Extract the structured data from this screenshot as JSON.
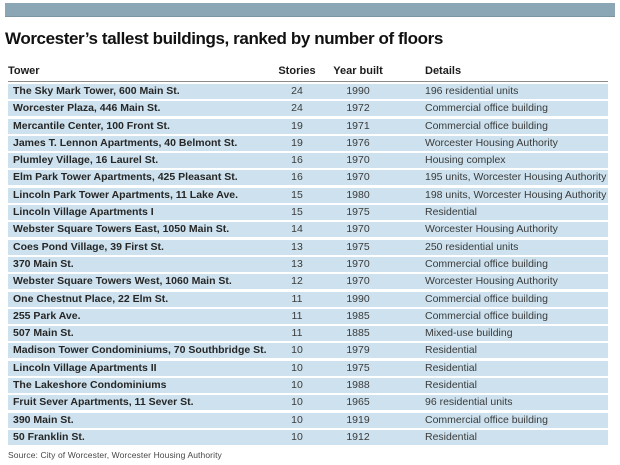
{
  "colors": {
    "top_bar": "#8ba6b4",
    "top_bar_edge": "#7b95a3",
    "row_background": "#cde2ee",
    "title_text": "#111111",
    "body_text": "#3a3a3a"
  },
  "chart_data": {
    "type": "table",
    "title": "Worcester’s tallest buildings, ranked by number of floors",
    "columns": [
      "Tower",
      "Stories",
      "Year built",
      "Details"
    ],
    "rows": [
      {
        "tower": "The Sky Mark Tower, 600 Main St.",
        "stories": "24",
        "year": "1990",
        "details": "196 residential units"
      },
      {
        "tower": "Worcester Plaza, 446 Main St.",
        "stories": "24",
        "year": "1972",
        "details": "Commercial office building"
      },
      {
        "tower": "Mercantile Center, 100 Front St.",
        "stories": "19",
        "year": "1971",
        "details": "Commercial office building"
      },
      {
        "tower": "James T. Lennon Apartments, 40 Belmont St.",
        "stories": "19",
        "year": "1976",
        "details": "Worcester Housing Authority"
      },
      {
        "tower": "Plumley Village, 16 Laurel St.",
        "stories": "16",
        "year": "1970",
        "details": "Housing complex"
      },
      {
        "tower": "Elm Park Tower Apartments, 425 Pleasant St.",
        "stories": "16",
        "year": "1970",
        "details": "195 units, Worcester Housing Authority"
      },
      {
        "tower": "Lincoln Park Tower Apartments, 11 Lake Ave.",
        "stories": "15",
        "year": "1980",
        "details": "198 units, Worcester Housing Authority"
      },
      {
        "tower": "Lincoln Village Apartments I",
        "stories": "15",
        "year": "1975",
        "details": "Residential"
      },
      {
        "tower": "Webster Square Towers East, 1050 Main St.",
        "stories": "14",
        "year": "1970",
        "details": "Worcester Housing Authority"
      },
      {
        "tower": "Coes Pond Village, 39 First St.",
        "stories": "13",
        "year": "1975",
        "details": "250 residential units"
      },
      {
        "tower": "370 Main St.",
        "stories": "13",
        "year": "1970",
        "details": "Commercial office building"
      },
      {
        "tower": "Webster Square Towers West, 1060 Main St.",
        "stories": "12",
        "year": "1970",
        "details": "Worcester Housing Authority"
      },
      {
        "tower": "One Chestnut Place, 22 Elm St.",
        "stories": "11",
        "year": "1990",
        "details": "Commercial office building"
      },
      {
        "tower": "255 Park Ave.",
        "stories": "11",
        "year": "1985",
        "details": "Commercial office building"
      },
      {
        "tower": "507 Main St.",
        "stories": "11",
        "year": "1885",
        "details": "Mixed-use building"
      },
      {
        "tower": "Madison Tower Condominiums, 70 Southbridge St.",
        "stories": "10",
        "year": "1979",
        "details": "Residential"
      },
      {
        "tower": "Lincoln Village Apartments II",
        "stories": "10",
        "year": "1975",
        "details": "Residential"
      },
      {
        "tower": "The Lakeshore Condominiums",
        "stories": "10",
        "year": "1988",
        "details": "Residential"
      },
      {
        "tower": "Fruit Sever Apartments, 11 Sever St.",
        "stories": "10",
        "year": "1965",
        "details": "96 residential units"
      },
      {
        "tower": "390 Main St.",
        "stories": "10",
        "year": "1919",
        "details": "Commercial office building"
      },
      {
        "tower": "50 Franklin St.",
        "stories": "10",
        "year": "1912",
        "details": "Residential"
      }
    ],
    "source": "Source: City of Worcester, Worcester Housing Authority"
  }
}
